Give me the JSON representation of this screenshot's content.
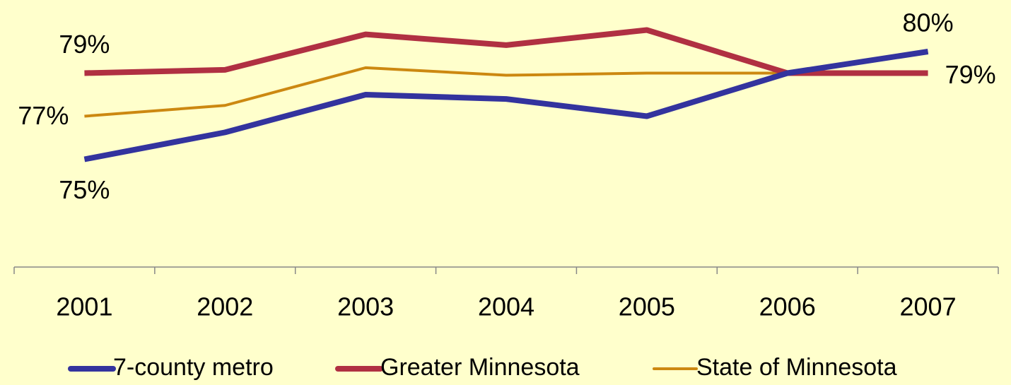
{
  "chart_data": {
    "type": "line",
    "categories": [
      "2001",
      "2002",
      "2003",
      "2004",
      "2005",
      "2006",
      "2007"
    ],
    "ylim": [
      70,
      82
    ],
    "legend": "bottom",
    "series": [
      {
        "name": "7-county metro",
        "color": "#33339e",
        "width": 8,
        "values": [
          75,
          76.25,
          78.0,
          77.8,
          77.0,
          79.0,
          80.0
        ],
        "value_labels": [
          "75%",
          null,
          null,
          null,
          null,
          null,
          "80%"
        ]
      },
      {
        "name": "Greater Minnesota",
        "color": "#b03042",
        "width": 8,
        "values": [
          79.0,
          79.15,
          80.8,
          80.3,
          81.0,
          79.0,
          79.0
        ],
        "value_labels": [
          "79%",
          null,
          null,
          null,
          null,
          null,
          "79%"
        ]
      },
      {
        "name": "State of Minnesota",
        "color": "#cc8811",
        "width": 4,
        "values": [
          77.0,
          77.5,
          79.25,
          78.9,
          79.0,
          79.0,
          80.0
        ],
        "value_labels": [
          "77%",
          null,
          null,
          null,
          null,
          null,
          null
        ]
      }
    ]
  }
}
